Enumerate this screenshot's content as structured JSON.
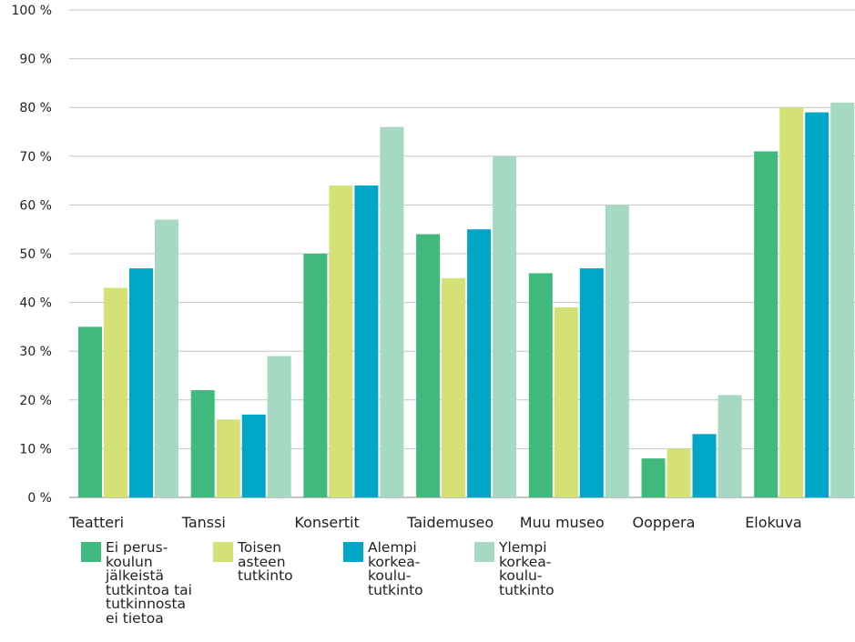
{
  "chart_data": {
    "type": "bar",
    "title": "",
    "xlabel": "",
    "ylabel": "",
    "ylim": [
      0,
      100
    ],
    "yticks": [
      "0 %",
      "10 %",
      "20 %",
      "30 %",
      "40 %",
      "50 %",
      "60 %",
      "70 %",
      "80 %",
      "90 %",
      "100 %"
    ],
    "grid": true,
    "legend_position": "bottom",
    "categories": [
      "Teatteri",
      "Tanssi",
      "Konsertit",
      "Taidemuseo",
      "Muu museo",
      "Ooppera",
      "Elokuva"
    ],
    "series": [
      {
        "name": "Ei perus-\nkoulun\njälkeistä\ntutkintoa tai\ntutkinnosta\nei tietoa",
        "color": "#40b97d",
        "values": [
          35,
          22,
          50,
          54,
          46,
          8,
          71
        ]
      },
      {
        "name": "Toisen\nasteen\ntutkinto",
        "color": "#d4e175",
        "values": [
          43,
          16,
          64,
          45,
          39,
          10,
          80
        ]
      },
      {
        "name": "Alempi\nkorkea-\nkoulu-\ntutkinto",
        "color": "#00a6c6",
        "values": [
          47,
          17,
          64,
          55,
          47,
          13,
          79
        ]
      },
      {
        "name": "Ylempi\nkorkea-\nkoulu-\ntutkinto",
        "color": "#a6d9c3",
        "values": [
          57,
          29,
          76,
          70,
          60,
          21,
          81
        ]
      }
    ]
  }
}
